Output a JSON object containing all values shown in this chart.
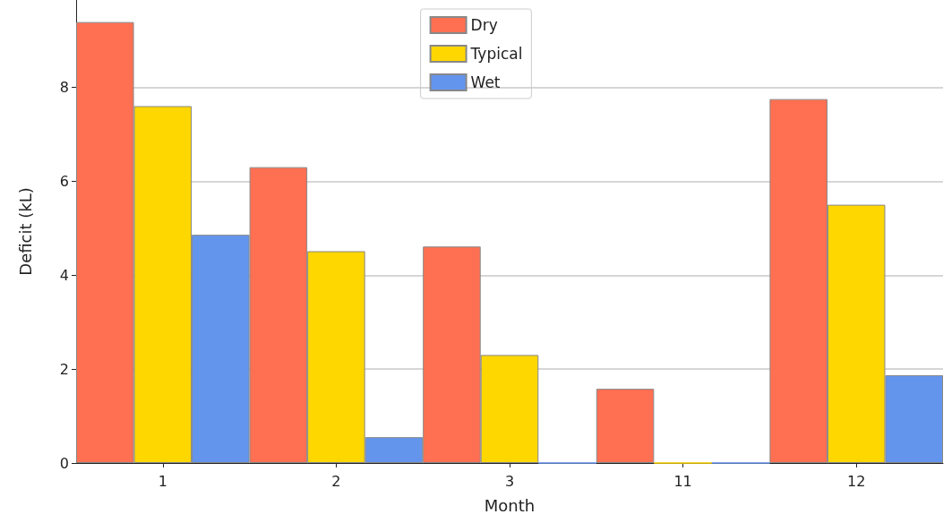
{
  "chart_data": {
    "type": "bar",
    "xlabel": "Month",
    "ylabel": "Deficit (kL)",
    "categories": [
      "1",
      "2",
      "3",
      "11",
      "12"
    ],
    "series": [
      {
        "name": "Dry",
        "color": "#ff6f52",
        "values": [
          9.39,
          6.3,
          4.61,
          1.58,
          7.75
        ]
      },
      {
        "name": "Typical",
        "color": "#ffd700",
        "values": [
          7.6,
          4.51,
          2.3,
          0,
          5.5
        ]
      },
      {
        "name": "Wet",
        "color": "#6495ed",
        "values": [
          4.86,
          0.55,
          0,
          0,
          1.87
        ]
      }
    ],
    "ylim": [
      0,
      9.86
    ],
    "yticks": [
      0,
      2,
      4,
      6,
      8
    ],
    "grid": "y",
    "legend": "top"
  }
}
